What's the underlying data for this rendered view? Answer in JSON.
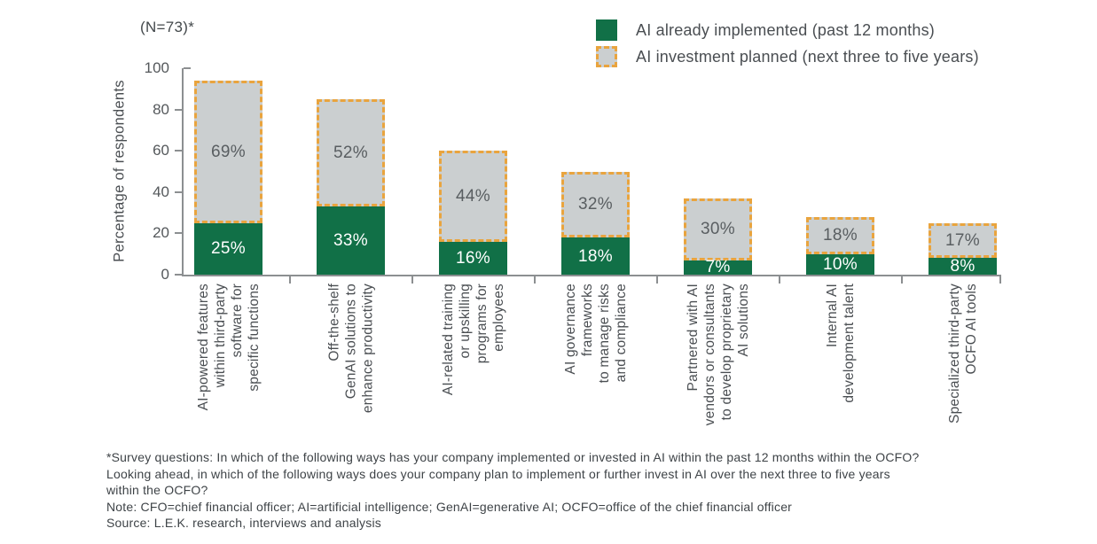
{
  "header": {
    "n_label": "(N=73)*"
  },
  "legend": {
    "items": [
      {
        "key": "implemented",
        "label": "AI already implemented (past 12 months)",
        "color": "#117047"
      },
      {
        "key": "planned",
        "label": "AI investment planned (next three to five years)",
        "fill": "#cbcfd0",
        "border": "#e9a43e"
      }
    ],
    "position": "top-right"
  },
  "chart_data": {
    "type": "bar",
    "stacked": true,
    "title": "",
    "xlabel": "",
    "ylabel": "Percentage of respondents",
    "ylim": [
      0,
      100
    ],
    "yticks": [
      0,
      20,
      40,
      60,
      80,
      100
    ],
    "grid": false,
    "legend_position": "top-right",
    "categories": [
      "AI-powered features\nwithin third-party\nsoftware for\nspecific functions",
      "Off-the-shelf\nGenAI solutions to\nenhance productivity",
      "AI-related training\nor upskilling\nprograms for\nemployees",
      "AI governance\nframeworks\nto manage risks\nand compliance",
      "Partnered with AI\nvendors or consultants\nto develop proprietary\nAI solutions",
      "Internal AI\ndevelopment talent",
      "Specialized third-party\nOCFO AI tools"
    ],
    "series": [
      {
        "name": "AI already implemented (past 12 months)",
        "values": [
          25,
          33,
          16,
          18,
          7,
          10,
          8
        ],
        "color": "#117047",
        "label_color": "#ffffff"
      },
      {
        "name": "AI investment planned (next three to five years)",
        "values": [
          69,
          52,
          44,
          32,
          30,
          18,
          17
        ],
        "color": "#cbcfd0",
        "border_color": "#e9a43e",
        "border_style": "dashed",
        "label_color": "#595e61"
      }
    ],
    "data_label_format": "{value}%"
  },
  "footnotes": {
    "lines": [
      "*Survey questions: In which of the following ways has your company implemented or invested in AI within the past 12 months within the OCFO?",
      "Looking ahead, in which of the following ways does your company plan to implement or further invest in AI over the next three to five years",
      "within the OCFO?",
      "Note: CFO=chief financial officer; AI=artificial intelligence; GenAI=generative AI; OCFO=office of the chief financial officer",
      "Source: L.E.K. research, interviews and analysis"
    ]
  }
}
